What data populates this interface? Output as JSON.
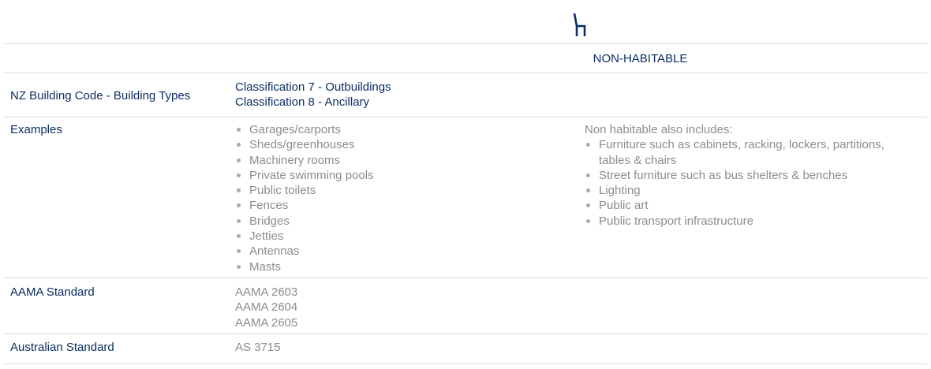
{
  "header": {
    "icon": "chair-icon",
    "title": "NON-HABITABLE"
  },
  "rows": {
    "building_types": {
      "label": "NZ Building Code - Building Types",
      "values": [
        "Classification 7 - Outbuildings",
        "Classification 8 - Ancillary"
      ]
    },
    "examples": {
      "label": "Examples",
      "items": [
        "Garages/carports",
        "Sheds/greenhouses",
        "Machinery rooms",
        "Private swimming pools",
        "Public toilets",
        "Fences",
        "Bridges",
        "Jetties",
        "Antennas",
        "Masts"
      ],
      "also_intro": "Non habitable also includes:",
      "also_items": [
        "Furniture such as cabinets, racking, lockers, partitions, tables & chairs",
        "Street furniture such as bus shelters & benches",
        "Lighting",
        "Public art",
        "Public transport infrastructure"
      ]
    },
    "aama": {
      "label": "AAMA Standard",
      "values": [
        "AAMA 2603",
        "AAMA 2604",
        "AAMA 2605"
      ]
    },
    "australian": {
      "label": "Australian Standard",
      "values": [
        "AS 3715"
      ]
    }
  },
  "colors": {
    "navy": "#0b2d63",
    "gray": "#8c8c8c"
  }
}
